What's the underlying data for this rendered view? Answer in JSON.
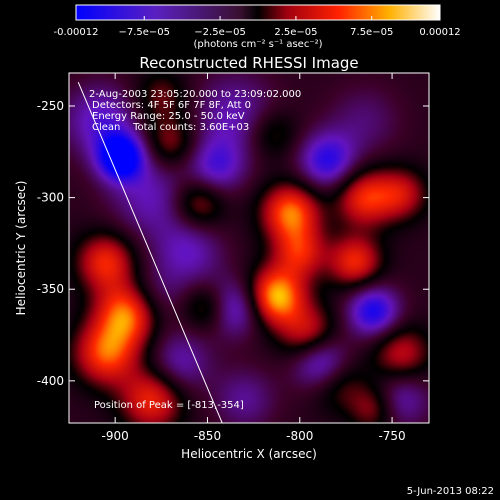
{
  "chart_data": {
    "type": "heatmap",
    "title": "Reconstructed RHESSI Image",
    "xlabel": "Heliocentric X (arcsec)",
    "ylabel": "Heliocentric Y (arcsec)",
    "xlim": [
      -925,
      -730
    ],
    "ylim": [
      -423,
      -232
    ],
    "x_ticks": [
      -900,
      -850,
      -800,
      -750
    ],
    "x_tick_labels": [
      "-900",
      "-850",
      "-800",
      "-750"
    ],
    "y_ticks": [
      -250,
      -300,
      -350,
      -400
    ],
    "y_tick_labels": [
      "-250",
      "-300",
      "-350",
      "-400"
    ],
    "colorbar": {
      "range": [
        -0.00012,
        0.00012
      ],
      "ticks": [
        -0.00012,
        -7.5e-05,
        -2.5e-05,
        2.5e-05,
        7.5e-05,
        0.00012
      ],
      "tick_labels": [
        "-0.00012",
        "−7.5e−05",
        "−2.5e−05",
        "2.5e−05",
        "7.5e−05",
        "0.00012"
      ],
      "unit_label": "(photons cm⁻² s⁻¹ asec⁻²)"
    },
    "annotations": [
      "2-Aug-2003 23:05:20.000 to 23:09:02.000",
      "Detectors: 4F 5F 6F 7F 8F, Att 0",
      "Energy Range: 25.0 - 50.0 keV",
      "Clean    Total counts: 3.60E+03"
    ],
    "peak_label": "Position of Peak = [-813,-354]",
    "peak": [
      -813,
      -354
    ],
    "limb_line": [
      [
        -920,
        -237
      ],
      [
        -842,
        -423
      ]
    ],
    "blobs": [
      {
        "x": -897,
        "y": -278,
        "v": -0.00012,
        "s": 9
      },
      {
        "x": -908,
        "y": -258,
        "v": -6e-05,
        "s": 14
      },
      {
        "x": -880,
        "y": -300,
        "v": -5e-05,
        "s": 16
      },
      {
        "x": -835,
        "y": -255,
        "v": -5e-05,
        "s": 16
      },
      {
        "x": -845,
        "y": -283,
        "v": -6e-05,
        "s": 11
      },
      {
        "x": -785,
        "y": -280,
        "v": -8e-05,
        "s": 11
      },
      {
        "x": -765,
        "y": -258,
        "v": -3e-05,
        "s": 14
      },
      {
        "x": -860,
        "y": -330,
        "v": -5e-05,
        "s": 13
      },
      {
        "x": -835,
        "y": -360,
        "v": -7e-05,
        "s": 11
      },
      {
        "x": -788,
        "y": -390,
        "v": -9e-05,
        "s": 11
      },
      {
        "x": -760,
        "y": -362,
        "v": -9e-05,
        "s": 10
      },
      {
        "x": -865,
        "y": -390,
        "v": -5e-05,
        "s": 12
      },
      {
        "x": -880,
        "y": -355,
        "v": -4e-05,
        "s": 12
      },
      {
        "x": -745,
        "y": -410,
        "v": -5e-05,
        "s": 11
      },
      {
        "x": -830,
        "y": -410,
        "v": -4e-05,
        "s": 12
      },
      {
        "x": -905,
        "y": -335,
        "v": 8e-05,
        "s": 11
      },
      {
        "x": -893,
        "y": -363,
        "v": 0.00011,
        "s": 12
      },
      {
        "x": -905,
        "y": -385,
        "v": 9e-05,
        "s": 12
      },
      {
        "x": -880,
        "y": -410,
        "v": 8e-05,
        "s": 12
      },
      {
        "x": -855,
        "y": -303,
        "v": 6e-05,
        "s": 10
      },
      {
        "x": -813,
        "y": -354,
        "v": 0.00012,
        "s": 11
      },
      {
        "x": -805,
        "y": -308,
        "v": 0.0001,
        "s": 11
      },
      {
        "x": -800,
        "y": -330,
        "v": 7e-05,
        "s": 10
      },
      {
        "x": -765,
        "y": -300,
        "v": 8e-05,
        "s": 11
      },
      {
        "x": -745,
        "y": -298,
        "v": 6e-05,
        "s": 10
      },
      {
        "x": -770,
        "y": -335,
        "v": 8e-05,
        "s": 10
      },
      {
        "x": -795,
        "y": -375,
        "v": 7e-05,
        "s": 11
      },
      {
        "x": -780,
        "y": -400,
        "v": 5e-05,
        "s": 11
      },
      {
        "x": -745,
        "y": -385,
        "v": 6e-05,
        "s": 11
      },
      {
        "x": -870,
        "y": -270,
        "v": 5e-05,
        "s": 10
      },
      {
        "x": -815,
        "y": -265,
        "v": 4e-05,
        "s": 10
      },
      {
        "x": -875,
        "y": -245,
        "v": 4e-05,
        "s": 10
      },
      {
        "x": -850,
        "y": -360,
        "v": 5e-05,
        "s": 9
      },
      {
        "x": -760,
        "y": -415,
        "v": 5e-05,
        "s": 9
      }
    ]
  },
  "footer": {
    "date": "5-Jun-2013 08:22"
  },
  "colors": {
    "background": "#000000",
    "text": "#ffffff"
  }
}
